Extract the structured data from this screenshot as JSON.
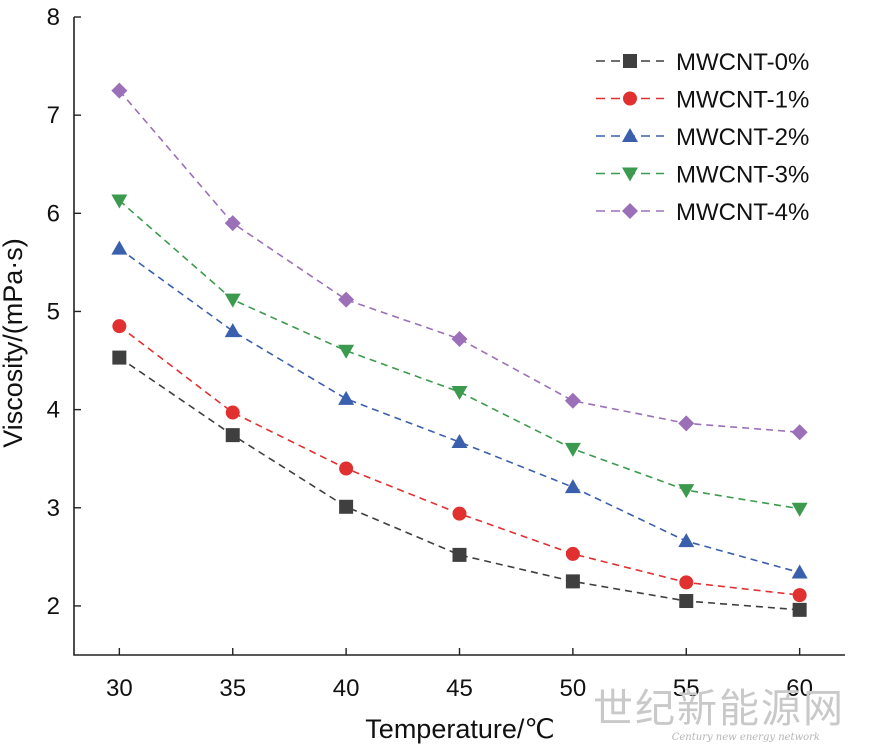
{
  "chart_data": {
    "type": "line",
    "title": "",
    "xlabel": "Temperature/℃",
    "ylabel": "Viscosity/(mPa·s)",
    "xlim": [
      28,
      62
    ],
    "ylim": [
      1.5,
      8
    ],
    "x": [
      30,
      35,
      40,
      45,
      50,
      55,
      60
    ],
    "xticks": [
      "30",
      "35",
      "40",
      "45",
      "50",
      "55",
      "60"
    ],
    "yticks": [
      "2",
      "3",
      "4",
      "5",
      "6",
      "7",
      "8"
    ],
    "grid": false,
    "legend_position": "top-right",
    "series": [
      {
        "name": "MWCNT-0%",
        "marker": "square",
        "color": "#3f3f3f",
        "values": [
          4.53,
          3.74,
          3.01,
          2.52,
          2.25,
          2.05,
          1.96
        ]
      },
      {
        "name": "MWCNT-1%",
        "marker": "circle",
        "color": "#e03030",
        "values": [
          4.85,
          3.97,
          3.4,
          2.94,
          2.53,
          2.24,
          2.11
        ]
      },
      {
        "name": "MWCNT-2%",
        "marker": "triangle-up",
        "color": "#3a5fad",
        "values": [
          5.64,
          4.8,
          4.11,
          3.67,
          3.21,
          2.66,
          2.34
        ]
      },
      {
        "name": "MWCNT-3%",
        "marker": "triangle-down",
        "color": "#3b9a4e",
        "values": [
          6.13,
          5.12,
          4.6,
          4.18,
          3.6,
          3.18,
          2.99
        ]
      },
      {
        "name": "MWCNT-4%",
        "marker": "diamond",
        "color": "#9b70b8",
        "values": [
          7.25,
          5.9,
          5.12,
          4.72,
          4.09,
          3.86,
          3.77
        ]
      }
    ]
  },
  "watermark": {
    "text": "世纪新能源网",
    "subtext": "Century new energy network"
  }
}
